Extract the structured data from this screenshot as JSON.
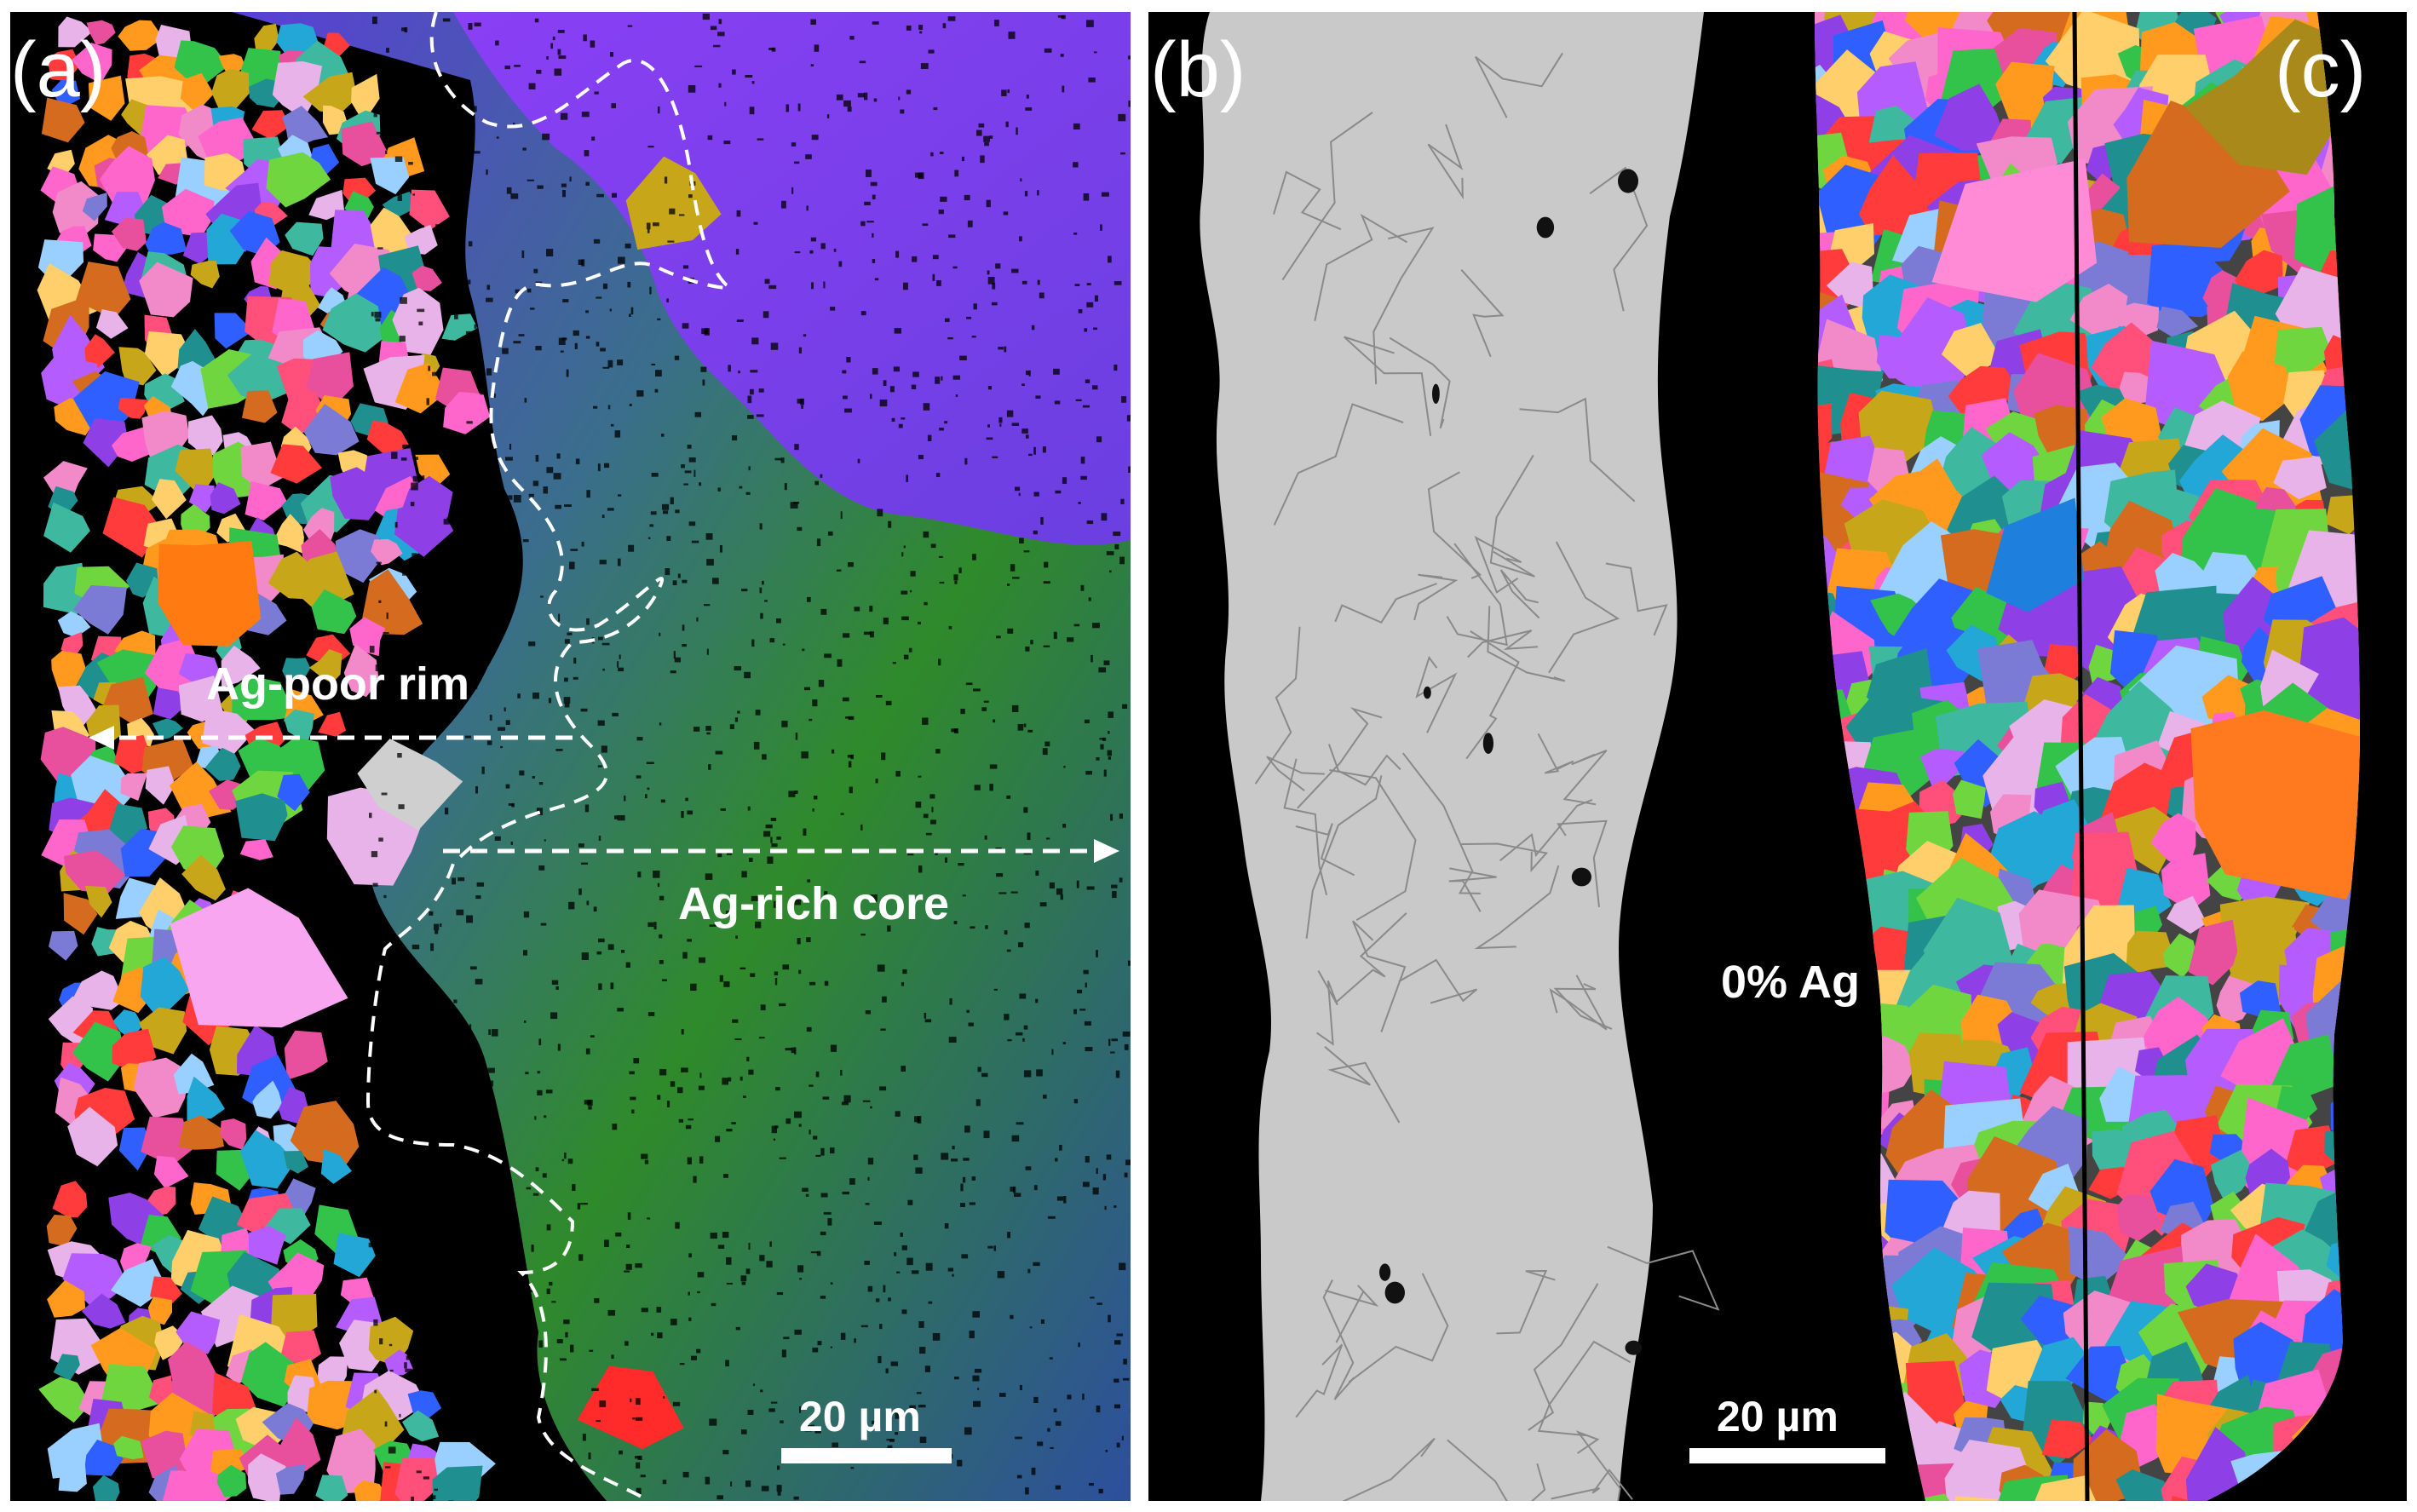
{
  "figure": {
    "panels": {
      "a": {
        "letter": "(a)",
        "rim_label": "Ag-poor rim",
        "core_label": "Ag-rich core",
        "scale_label": "20 µm"
      },
      "b": {
        "letter": "(b)"
      },
      "c": {
        "letter": "(c)",
        "composition_label": "0% Ag",
        "scale_label": "20 µm"
      }
    },
    "colors": {
      "background": "#000000",
      "core_purple": "#7a3ff0",
      "core_green": "#2f8a2a",
      "core_blue": "#2d4f9e",
      "micrograph_gray": "#c9c9c9",
      "grain_palette": [
        "#ff66cc",
        "#ff9a1f",
        "#22a7d6",
        "#8f3fe6",
        "#33c24a",
        "#ff4f7a",
        "#c8a61a",
        "#2f60ff",
        "#e8b3e8",
        "#ff3b3b",
        "#3fb8a0",
        "#b55cff",
        "#d46b1f",
        "#6fd63f",
        "#f28ac9",
        "#1f8f8f",
        "#ffcf6b",
        "#7b7bd6",
        "#e84f9c",
        "#9ad0ff"
      ]
    }
  }
}
